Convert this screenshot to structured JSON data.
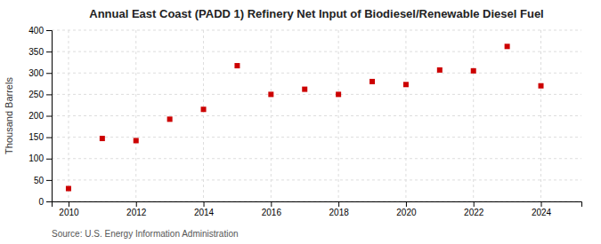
{
  "chart_data": {
    "type": "scatter",
    "title": "Annual East Coast (PADD 1) Refinery Net Input of Biodiesel/Renewable Diesel Fuel",
    "ylabel": "Thousand Barrels",
    "source": "Source: U.S. Energy Information Administration",
    "x": [
      2010,
      2011,
      2012,
      2013,
      2014,
      2015,
      2016,
      2017,
      2018,
      2019,
      2020,
      2021,
      2022,
      2023,
      2024
    ],
    "values": [
      30,
      147,
      142,
      192,
      215,
      317,
      250,
      262,
      250,
      280,
      273,
      307,
      305,
      362,
      270
    ],
    "color": "#cc0000",
    "marker": "square",
    "xlim": [
      2009.5,
      2025.2
    ],
    "ylim": [
      0,
      400
    ],
    "xticks": [
      2010,
      2012,
      2014,
      2016,
      2018,
      2020,
      2022,
      2024
    ],
    "yticks": [
      0,
      50,
      100,
      150,
      200,
      250,
      300,
      350,
      400
    ],
    "grid": true
  }
}
